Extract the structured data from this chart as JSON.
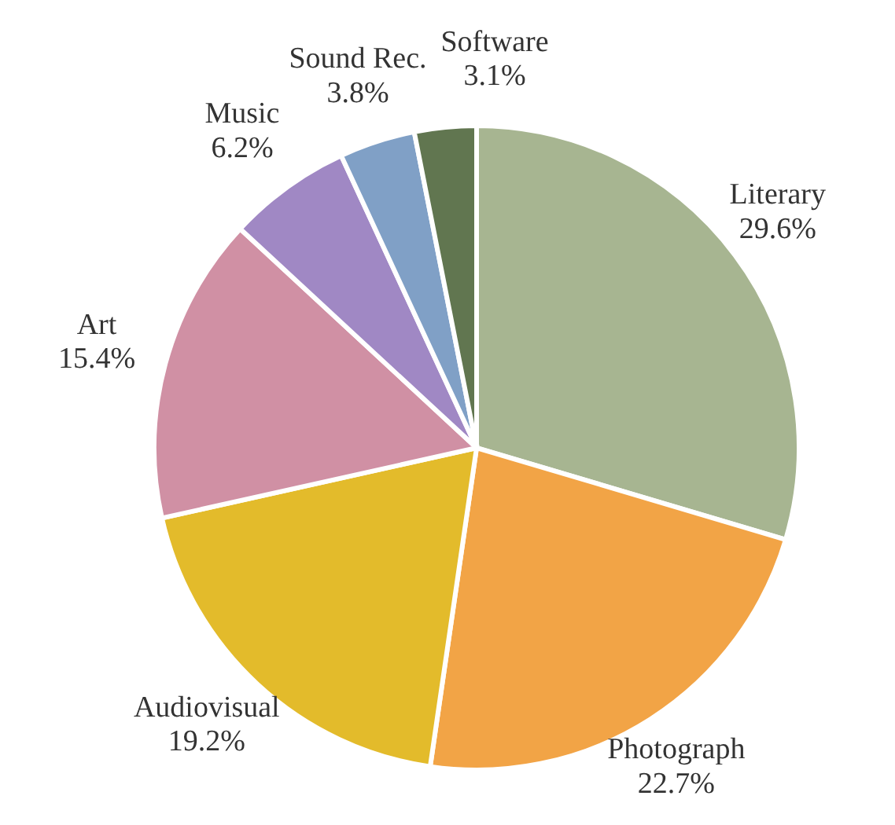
{
  "chart_data": {
    "type": "pie",
    "categories": [
      "Literary",
      "Photograph",
      "Audiovisual",
      "Art",
      "Music",
      "Sound Rec.",
      "Software"
    ],
    "values": [
      29.6,
      22.7,
      19.2,
      15.4,
      6.2,
      3.8,
      3.1
    ],
    "colors": [
      "#a7b591",
      "#f2a446",
      "#e3bb2b",
      "#d090a4",
      "#a088c4",
      "#80a0c6",
      "#617650"
    ],
    "value_labels": [
      "29.6%",
      "22.7%",
      "19.2%",
      "15.4%",
      "6.2%",
      "3.8%",
      "3.1%"
    ],
    "legend": false
  }
}
